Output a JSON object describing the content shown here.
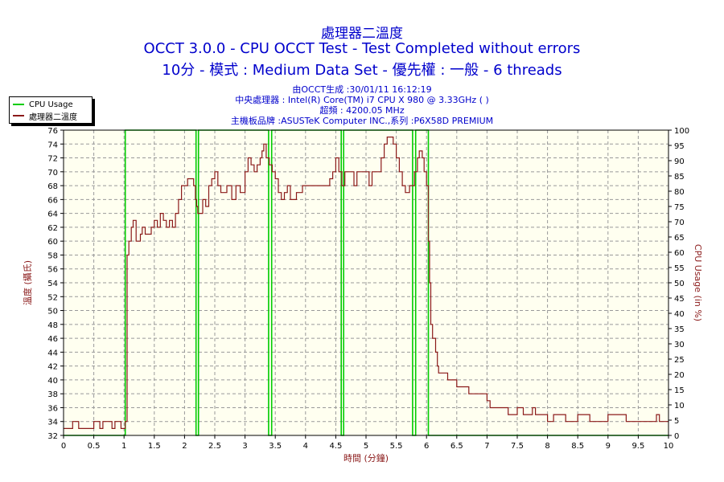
{
  "titles": {
    "line1": "處理器二溫度",
    "line2": "OCCT 3.0.0 - CPU OCCT Test - Test Completed without errors",
    "line3": "10分 - 模式 : Medium Data Set - 優先權 : 一般 - 6 threads"
  },
  "info": {
    "line1": "由OCCT生成 :30/01/11 16:12:19",
    "line2": "中央處理器 : Intel(R) Core(TM) i7 CPU X 980 @ 3.33GHz (   )",
    "line3": "超頻 : 4200.05 MHz",
    "line4": "主機板品牌 :ASUSTeK Computer INC.,系列 :P6X58D PREMIUM"
  },
  "legend": [
    {
      "label": "CPU Usage",
      "color": "#00cc00"
    },
    {
      "label": "處理器二溫度",
      "color": "#8b1a1a"
    }
  ],
  "chart_data": {
    "type": "line",
    "xlabel": "時間 (分鐘)",
    "ylabel": "溫度 (攝氏)",
    "y2label": "CPU Usage (in %)",
    "xlim": [
      0,
      10
    ],
    "ylim": [
      32,
      76
    ],
    "y2lim": [
      0,
      100
    ],
    "x_ticks": [
      "0",
      "0.5",
      "1",
      "1.5",
      "2",
      "2.5",
      "3",
      "3.5",
      "4",
      "4.5",
      "5",
      "5.5",
      "6",
      "6.5",
      "7",
      "7.5",
      "8",
      "8.5",
      "9",
      "9.5",
      "10"
    ],
    "y_ticks": [
      "32",
      "34",
      "36",
      "38",
      "40",
      "42",
      "44",
      "46",
      "48",
      "50",
      "52",
      "54",
      "56",
      "58",
      "60",
      "62",
      "64",
      "66",
      "68",
      "70",
      "72",
      "74",
      "76"
    ],
    "y2_ticks": [
      "0",
      "5",
      "10",
      "15",
      "20",
      "25",
      "30",
      "35",
      "40",
      "45",
      "50",
      "55",
      "60",
      "65",
      "70",
      "75",
      "80",
      "85",
      "90",
      "95",
      "100"
    ],
    "grid": true,
    "legend_position": "top-left",
    "series": [
      {
        "name": "處理器二溫度",
        "axis": "left",
        "color": "#8b1a1a",
        "step": true,
        "points": [
          [
            0,
            33
          ],
          [
            0.15,
            34
          ],
          [
            0.25,
            33
          ],
          [
            0.5,
            34
          ],
          [
            0.6,
            33
          ],
          [
            0.65,
            34
          ],
          [
            0.8,
            33
          ],
          [
            0.85,
            34
          ],
          [
            0.95,
            33
          ],
          [
            1.02,
            34
          ],
          [
            1.05,
            58
          ],
          [
            1.08,
            60
          ],
          [
            1.12,
            62
          ],
          [
            1.15,
            63
          ],
          [
            1.2,
            60
          ],
          [
            1.27,
            61
          ],
          [
            1.3,
            62
          ],
          [
            1.35,
            61
          ],
          [
            1.45,
            62
          ],
          [
            1.5,
            63
          ],
          [
            1.55,
            62
          ],
          [
            1.6,
            64
          ],
          [
            1.65,
            63
          ],
          [
            1.7,
            62
          ],
          [
            1.75,
            63
          ],
          [
            1.8,
            62
          ],
          [
            1.85,
            64
          ],
          [
            1.9,
            66
          ],
          [
            1.95,
            68
          ],
          [
            2.02,
            68
          ],
          [
            2.05,
            69
          ],
          [
            2.15,
            68
          ],
          [
            2.18,
            66
          ],
          [
            2.2,
            65
          ],
          [
            2.22,
            64
          ],
          [
            2.27,
            64
          ],
          [
            2.3,
            66
          ],
          [
            2.35,
            65
          ],
          [
            2.4,
            68
          ],
          [
            2.45,
            69
          ],
          [
            2.5,
            70
          ],
          [
            2.55,
            68
          ],
          [
            2.6,
            67
          ],
          [
            2.7,
            68
          ],
          [
            2.78,
            66
          ],
          [
            2.85,
            68
          ],
          [
            2.92,
            67
          ],
          [
            3.0,
            70
          ],
          [
            3.05,
            72
          ],
          [
            3.1,
            71
          ],
          [
            3.15,
            70
          ],
          [
            3.2,
            71
          ],
          [
            3.25,
            72
          ],
          [
            3.28,
            73
          ],
          [
            3.31,
            74
          ],
          [
            3.35,
            72
          ],
          [
            3.4,
            71
          ],
          [
            3.45,
            70
          ],
          [
            3.5,
            69
          ],
          [
            3.55,
            67
          ],
          [
            3.6,
            66
          ],
          [
            3.65,
            67
          ],
          [
            3.7,
            68
          ],
          [
            3.75,
            66
          ],
          [
            3.85,
            67
          ],
          [
            3.95,
            68
          ],
          [
            4.1,
            68
          ],
          [
            4.4,
            69
          ],
          [
            4.45,
            70
          ],
          [
            4.5,
            72
          ],
          [
            4.55,
            70
          ],
          [
            4.6,
            68
          ],
          [
            4.65,
            70
          ],
          [
            4.8,
            68
          ],
          [
            4.85,
            70
          ],
          [
            5.0,
            70
          ],
          [
            5.05,
            68
          ],
          [
            5.1,
            70
          ],
          [
            5.2,
            70
          ],
          [
            5.25,
            72
          ],
          [
            5.3,
            74
          ],
          [
            5.35,
            75
          ],
          [
            5.45,
            74
          ],
          [
            5.5,
            72
          ],
          [
            5.55,
            70
          ],
          [
            5.6,
            68
          ],
          [
            5.65,
            67
          ],
          [
            5.72,
            68
          ],
          [
            5.8,
            70
          ],
          [
            5.85,
            72
          ],
          [
            5.88,
            73
          ],
          [
            5.93,
            72
          ],
          [
            5.96,
            70
          ],
          [
            6.0,
            68
          ],
          [
            6.03,
            60
          ],
          [
            6.05,
            54
          ],
          [
            6.07,
            48
          ],
          [
            6.1,
            46
          ],
          [
            6.15,
            44
          ],
          [
            6.18,
            42
          ],
          [
            6.2,
            41
          ],
          [
            6.35,
            40
          ],
          [
            6.5,
            39
          ],
          [
            6.7,
            38
          ],
          [
            7.0,
            37
          ],
          [
            7.05,
            36
          ],
          [
            7.3,
            36
          ],
          [
            7.35,
            35
          ],
          [
            7.5,
            36
          ],
          [
            7.6,
            35
          ],
          [
            7.75,
            36
          ],
          [
            7.8,
            35
          ],
          [
            8.0,
            34
          ],
          [
            8.1,
            35
          ],
          [
            8.3,
            34
          ],
          [
            8.5,
            35
          ],
          [
            8.7,
            34
          ],
          [
            9.0,
            35
          ],
          [
            9.3,
            34
          ],
          [
            9.8,
            35
          ],
          [
            9.85,
            34
          ],
          [
            10.0,
            34
          ]
        ]
      },
      {
        "name": "CPU Usage",
        "axis": "right",
        "color": "#00cc00",
        "step": true,
        "points": [
          [
            0,
            0
          ],
          [
            1.0,
            0
          ],
          [
            1.02,
            100
          ],
          [
            2.18,
            100
          ],
          [
            2.19,
            0
          ],
          [
            2.22,
            0
          ],
          [
            2.23,
            100
          ],
          [
            3.38,
            100
          ],
          [
            3.39,
            0
          ],
          [
            3.43,
            0
          ],
          [
            3.44,
            100
          ],
          [
            4.58,
            100
          ],
          [
            4.59,
            0
          ],
          [
            4.62,
            0
          ],
          [
            4.63,
            100
          ],
          [
            5.76,
            100
          ],
          [
            5.77,
            0
          ],
          [
            5.81,
            0
          ],
          [
            5.82,
            100
          ],
          [
            6.02,
            100
          ],
          [
            6.03,
            0
          ],
          [
            10.0,
            0
          ]
        ]
      }
    ]
  }
}
